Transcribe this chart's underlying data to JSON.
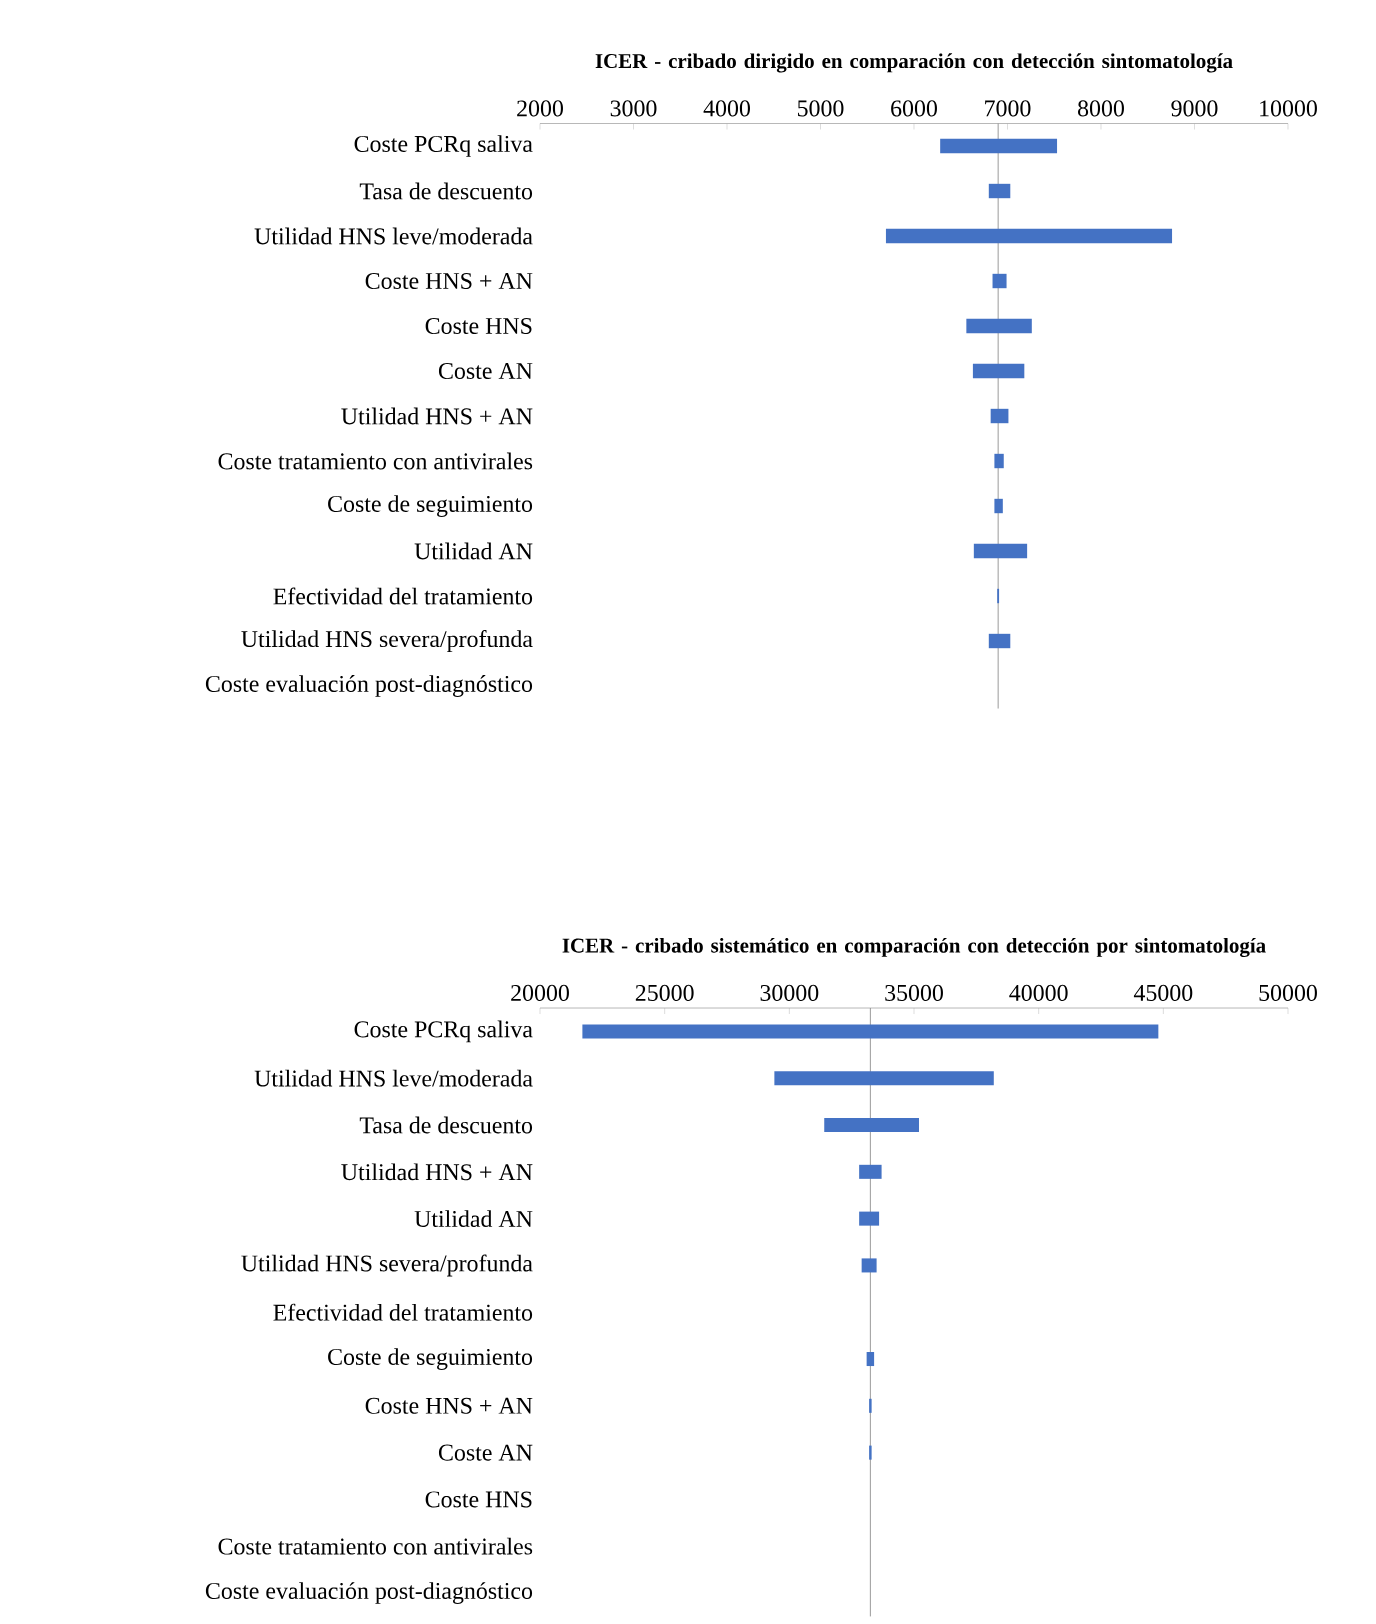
{
  "chart_data": [
    {
      "type": "bar",
      "orientation": "horizontal",
      "title": "ICER - cribado dirigido en comparación con detección sintomatología",
      "categories": [
        "Coste PCRq saliva",
        "Tasa de descuento",
        "Utilidad HNS leve/moderada",
        "Coste HNS + AN",
        "Coste HNS",
        "Coste AN",
        "Utilidad HNS + AN",
        "Coste tratamiento con antivirales",
        "Coste de seguimiento",
        "Utilidad AN",
        "Efectividad del tratamiento",
        "Utilidad HNS severa/profunda",
        "Coste evaluación post-diagnóstico"
      ],
      "base": [
        6280,
        6800,
        5700,
        6840,
        6560,
        6630,
        6820,
        6860,
        6860,
        6640,
        6890,
        6800,
        null
      ],
      "values": [
        1250,
        230,
        3060,
        150,
        700,
        550,
        190,
        100,
        90,
        570,
        20,
        230,
        null
      ],
      "color": "#4472c4",
      "xlim": [
        2000,
        10000
      ],
      "xticks": [
        2000,
        3000,
        4000,
        5000,
        6000,
        7000,
        8000,
        9000,
        10000
      ],
      "ref_lines": [
        {
          "axis": "x",
          "value": 6900,
          "color": "#808080"
        }
      ]
    },
    {
      "type": "bar",
      "orientation": "horizontal",
      "title": "ICER - cribado sistemático en comparación con detección por sintomatología",
      "categories": [
        "Coste PCRq saliva",
        "Utilidad HNS leve/moderada",
        "Tasa de descuento",
        "Utilidad HNS + AN",
        "Utilidad AN",
        "Utilidad HNS severa/profunda",
        "Efectividad del tratamiento",
        "Coste de seguimiento",
        "Coste HNS + AN",
        "Coste AN",
        "Coste HNS",
        "Coste tratamiento con antivirales",
        "Coste evaluación post-diagnóstico"
      ],
      "base": [
        21700,
        29400,
        31400,
        32800,
        32800,
        32900,
        null,
        33100,
        33200,
        33200,
        null,
        null,
        null
      ],
      "values": [
        23100,
        8800,
        3800,
        900,
        800,
        600,
        null,
        300,
        100,
        100,
        null,
        null,
        null
      ],
      "color": "#4472c4",
      "xlim": [
        20000,
        50000
      ],
      "xticks": [
        20000,
        25000,
        30000,
        35000,
        40000,
        45000,
        50000
      ],
      "ref_lines": [
        {
          "axis": "x",
          "value": 33250,
          "color": "#808080"
        }
      ]
    }
  ]
}
